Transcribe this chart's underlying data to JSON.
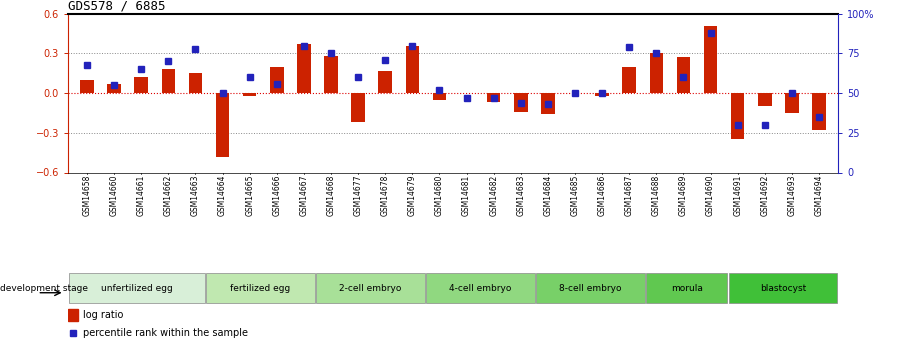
{
  "title": "GDS578 / 6885",
  "samples": [
    "GSM14658",
    "GSM14660",
    "GSM14661",
    "GSM14662",
    "GSM14663",
    "GSM14664",
    "GSM14665",
    "GSM14666",
    "GSM14667",
    "GSM14668",
    "GSM14677",
    "GSM14678",
    "GSM14679",
    "GSM14680",
    "GSM14681",
    "GSM14682",
    "GSM14683",
    "GSM14684",
    "GSM14685",
    "GSM14686",
    "GSM14687",
    "GSM14688",
    "GSM14689",
    "GSM14690",
    "GSM14691",
    "GSM14692",
    "GSM14693",
    "GSM14694"
  ],
  "log_ratio": [
    0.1,
    0.07,
    0.12,
    0.18,
    0.15,
    -0.48,
    -0.02,
    0.2,
    0.37,
    0.28,
    -0.22,
    0.17,
    0.36,
    -0.05,
    0.0,
    -0.07,
    -0.14,
    -0.16,
    0.0,
    -0.02,
    0.2,
    0.3,
    0.27,
    0.51,
    -0.35,
    -0.1,
    -0.15,
    -0.28
  ],
  "percentile_rank": [
    68,
    55,
    65,
    70,
    78,
    50,
    60,
    56,
    80,
    75,
    60,
    71,
    80,
    52,
    47,
    47,
    44,
    43,
    50,
    50,
    79,
    75,
    60,
    88,
    30,
    30,
    50,
    35
  ],
  "stages": [
    {
      "label": "unfertilized egg",
      "start": 0,
      "end": 5
    },
    {
      "label": "fertilized egg",
      "start": 5,
      "end": 9
    },
    {
      "label": "2-cell embryo",
      "start": 9,
      "end": 13
    },
    {
      "label": "4-cell embryo",
      "start": 13,
      "end": 17
    },
    {
      "label": "8-cell embryo",
      "start": 17,
      "end": 21
    },
    {
      "label": "morula",
      "start": 21,
      "end": 24
    },
    {
      "label": "blastocyst",
      "start": 24,
      "end": 28
    }
  ],
  "stage_colors": [
    "#d8efd8",
    "#c0e8b0",
    "#a8e098",
    "#90d880",
    "#78d068",
    "#60c850",
    "#40c038"
  ],
  "ylim": [
    -0.6,
    0.6
  ],
  "y2lim": [
    0,
    100
  ],
  "bar_color": "#cc2200",
  "dot_color": "#2222bb",
  "xtick_bg": "#cccccc",
  "background_color": "#ffffff"
}
